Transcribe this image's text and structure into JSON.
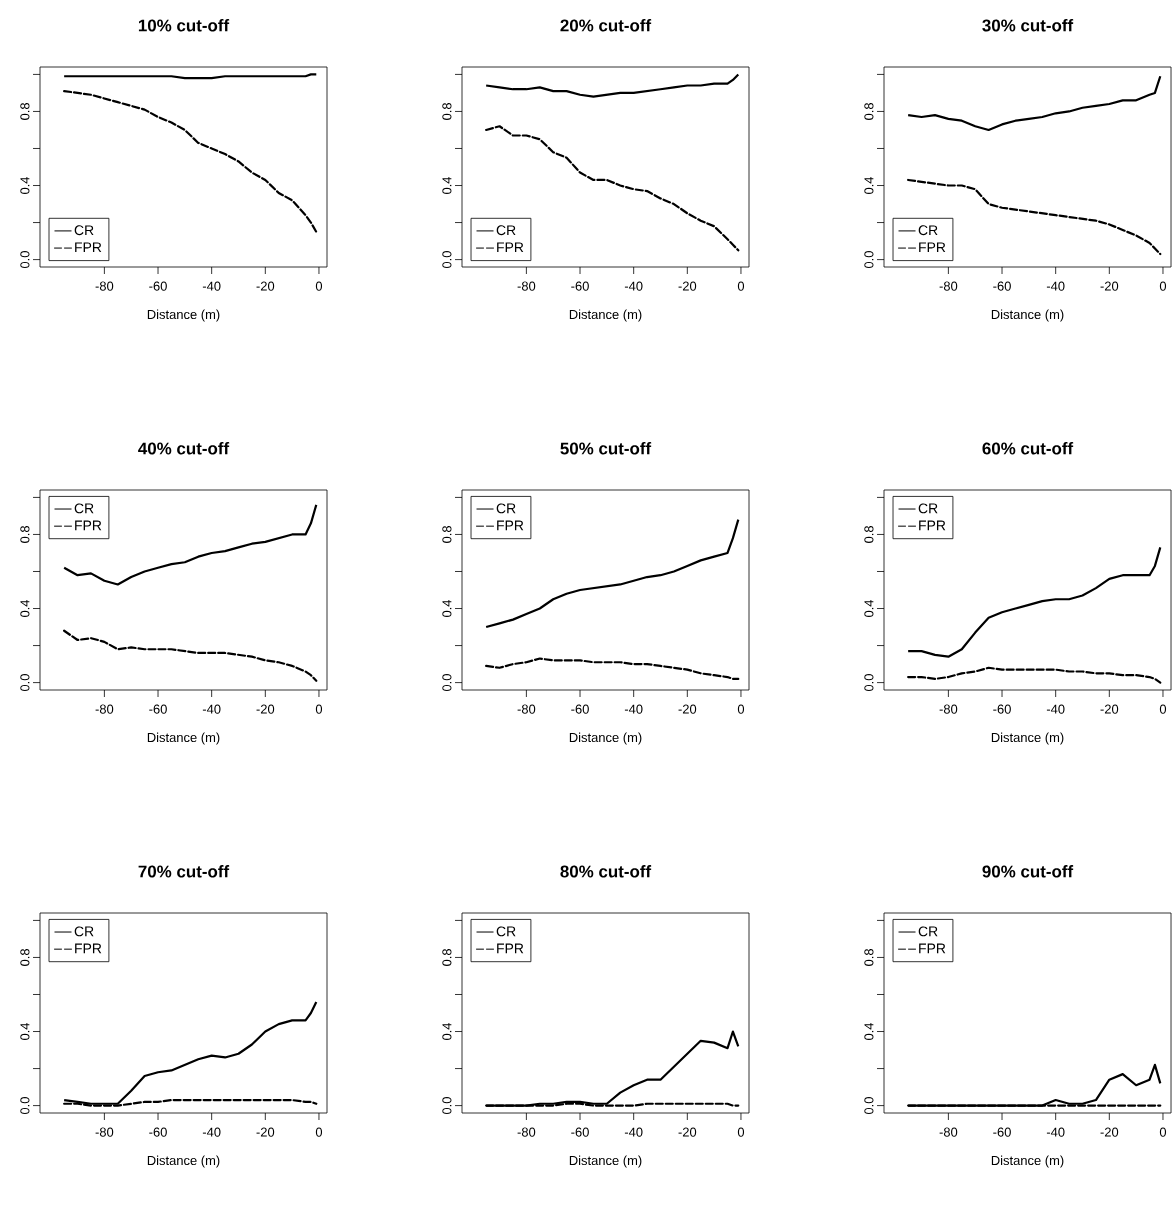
{
  "chart_data": [
    {
      "type": "line",
      "title": "10% cut-off",
      "xlabel": "Distance (m)",
      "legend": "bottom left",
      "xlim": [
        -104,
        3
      ],
      "ylim": [
        -0.04,
        1.04
      ],
      "xticks": [
        {
          "value": -80,
          "label": "-80"
        },
        {
          "value": -60,
          "label": "-60"
        },
        {
          "value": -40,
          "label": "-40"
        },
        {
          "value": -20,
          "label": "-20"
        },
        0
      ],
      "yticks": [
        {
          "value": 0,
          "label": "0.0"
        },
        {
          "value": 0.2,
          "label": null
        },
        {
          "value": 0.4,
          "label": "0.4"
        },
        {
          "value": 0.6,
          "label": null
        },
        {
          "value": 0.8,
          "label": "0.8"
        },
        {
          "value": 1.0,
          "label": null
        }
      ],
      "x": [
        -95,
        -90,
        -85,
        -80,
        -75,
        -70,
        -65,
        -60,
        -55,
        -50,
        -45,
        -40,
        -35,
        -30,
        -25,
        -20,
        -15,
        -10,
        -5,
        -3,
        -1
      ],
      "series": [
        {
          "name": "CR",
          "color": "#000000",
          "line_style": "solid",
          "values": [
            0.99,
            0.99,
            0.99,
            0.99,
            0.99,
            0.99,
            0.99,
            0.99,
            0.99,
            0.98,
            0.98,
            0.98,
            0.99,
            0.99,
            0.99,
            0.99,
            0.99,
            0.99,
            0.99,
            1.0,
            1.0
          ]
        },
        {
          "name": "FPR",
          "color": "#000000",
          "line_style": "dashed",
          "values": [
            0.91,
            0.9,
            0.89,
            0.87,
            0.85,
            0.83,
            0.81,
            0.77,
            0.74,
            0.7,
            0.63,
            0.6,
            0.57,
            0.53,
            0.47,
            0.43,
            0.36,
            0.32,
            0.24,
            0.2,
            0.15
          ]
        }
      ]
    },
    {
      "type": "line",
      "title": "20% cut-off",
      "xlabel": "Distance (m)",
      "legend": "bottom left",
      "xlim": [
        -104,
        3
      ],
      "ylim": [
        -0.04,
        1.04
      ],
      "xticks": [
        {
          "value": -80,
          "label": "-80"
        },
        {
          "value": -60,
          "label": "-60"
        },
        {
          "value": -40,
          "label": "-40"
        },
        {
          "value": -20,
          "label": "-20"
        },
        0
      ],
      "yticks": [
        {
          "value": 0,
          "label": "0.0"
        },
        {
          "value": 0.2,
          "label": null
        },
        {
          "value": 0.4,
          "label": "0.4"
        },
        {
          "value": 0.6,
          "label": null
        },
        {
          "value": 0.8,
          "label": "0.8"
        },
        {
          "value": 1.0,
          "label": null
        }
      ],
      "x": [
        -95,
        -90,
        -85,
        -80,
        -75,
        -70,
        -65,
        -60,
        -55,
        -50,
        -45,
        -40,
        -35,
        -30,
        -25,
        -20,
        -15,
        -10,
        -5,
        -3,
        -1
      ],
      "series": [
        {
          "name": "CR",
          "color": "#000000",
          "line_style": "solid",
          "values": [
            0.94,
            0.93,
            0.92,
            0.92,
            0.93,
            0.91,
            0.91,
            0.89,
            0.88,
            0.89,
            0.9,
            0.9,
            0.91,
            0.92,
            0.93,
            0.94,
            0.94,
            0.95,
            0.95,
            0.97,
            1.0
          ]
        },
        {
          "name": "FPR",
          "color": "#000000",
          "line_style": "dashed",
          "values": [
            0.7,
            0.72,
            0.67,
            0.67,
            0.65,
            0.58,
            0.55,
            0.47,
            0.43,
            0.43,
            0.4,
            0.38,
            0.37,
            0.33,
            0.3,
            0.25,
            0.21,
            0.18,
            0.11,
            0.08,
            0.05
          ]
        }
      ]
    },
    {
      "type": "line",
      "title": "30% cut-off",
      "xlabel": "Distance (m)",
      "legend": "bottom left",
      "xlim": [
        -104,
        3
      ],
      "ylim": [
        -0.04,
        1.04
      ],
      "xticks": [
        {
          "value": -80,
          "label": "-80"
        },
        {
          "value": -60,
          "label": "-60"
        },
        {
          "value": -40,
          "label": "-40"
        },
        {
          "value": -20,
          "label": "-20"
        },
        0
      ],
      "yticks": [
        {
          "value": 0,
          "label": "0.0"
        },
        {
          "value": 0.2,
          "label": null
        },
        {
          "value": 0.4,
          "label": "0.4"
        },
        {
          "value": 0.6,
          "label": null
        },
        {
          "value": 0.8,
          "label": "0.8"
        },
        {
          "value": 1.0,
          "label": null
        }
      ],
      "x": [
        -95,
        -90,
        -85,
        -80,
        -75,
        -70,
        -65,
        -60,
        -55,
        -50,
        -45,
        -40,
        -35,
        -30,
        -25,
        -20,
        -15,
        -10,
        -5,
        -3,
        -1
      ],
      "series": [
        {
          "name": "CR",
          "color": "#000000",
          "line_style": "solid",
          "values": [
            0.78,
            0.77,
            0.78,
            0.76,
            0.75,
            0.72,
            0.7,
            0.73,
            0.75,
            0.76,
            0.77,
            0.79,
            0.8,
            0.82,
            0.83,
            0.84,
            0.86,
            0.86,
            0.89,
            0.9,
            0.99
          ]
        },
        {
          "name": "FPR",
          "color": "#000000",
          "line_style": "dashed",
          "values": [
            0.43,
            0.42,
            0.41,
            0.4,
            0.4,
            0.38,
            0.3,
            0.28,
            0.27,
            0.26,
            0.25,
            0.24,
            0.23,
            0.22,
            0.21,
            0.19,
            0.16,
            0.13,
            0.09,
            0.06,
            0.03
          ]
        }
      ]
    },
    {
      "type": "line",
      "title": "40% cut-off",
      "xlabel": "Distance (m)",
      "legend": "top left",
      "xlim": [
        -104,
        3
      ],
      "ylim": [
        -0.04,
        1.04
      ],
      "xticks": [
        {
          "value": -80,
          "label": "-80"
        },
        {
          "value": -60,
          "label": "-60"
        },
        {
          "value": -40,
          "label": "-40"
        },
        {
          "value": -20,
          "label": "-20"
        },
        0
      ],
      "yticks": [
        {
          "value": 0,
          "label": "0.0"
        },
        {
          "value": 0.2,
          "label": null
        },
        {
          "value": 0.4,
          "label": "0.4"
        },
        {
          "value": 0.6,
          "label": null
        },
        {
          "value": 0.8,
          "label": "0.8"
        },
        {
          "value": 1.0,
          "label": null
        }
      ],
      "x": [
        -95,
        -90,
        -85,
        -80,
        -75,
        -70,
        -65,
        -60,
        -55,
        -50,
        -45,
        -40,
        -35,
        -30,
        -25,
        -20,
        -15,
        -10,
        -5,
        -3,
        -1
      ],
      "series": [
        {
          "name": "CR",
          "color": "#000000",
          "line_style": "solid",
          "values": [
            0.62,
            0.58,
            0.59,
            0.55,
            0.53,
            0.57,
            0.6,
            0.62,
            0.64,
            0.65,
            0.68,
            0.7,
            0.71,
            0.73,
            0.75,
            0.76,
            0.78,
            0.8,
            0.8,
            0.86,
            0.96
          ]
        },
        {
          "name": "FPR",
          "color": "#000000",
          "line_style": "dashed",
          "values": [
            0.28,
            0.23,
            0.24,
            0.22,
            0.18,
            0.19,
            0.18,
            0.18,
            0.18,
            0.17,
            0.16,
            0.16,
            0.16,
            0.15,
            0.14,
            0.12,
            0.11,
            0.09,
            0.06,
            0.04,
            0.01
          ]
        }
      ]
    },
    {
      "type": "line",
      "title": "50% cut-off",
      "xlabel": "Distance (m)",
      "legend": "top left",
      "xlim": [
        -104,
        3
      ],
      "ylim": [
        -0.04,
        1.04
      ],
      "xticks": [
        {
          "value": -80,
          "label": "-80"
        },
        {
          "value": -60,
          "label": "-60"
        },
        {
          "value": -40,
          "label": "-40"
        },
        {
          "value": -20,
          "label": "-20"
        },
        0
      ],
      "yticks": [
        {
          "value": 0,
          "label": "0.0"
        },
        {
          "value": 0.2,
          "label": null
        },
        {
          "value": 0.4,
          "label": "0.4"
        },
        {
          "value": 0.6,
          "label": null
        },
        {
          "value": 0.8,
          "label": "0.8"
        },
        {
          "value": 1.0,
          "label": null
        }
      ],
      "x": [
        -95,
        -90,
        -85,
        -80,
        -75,
        -70,
        -65,
        -60,
        -55,
        -50,
        -45,
        -40,
        -35,
        -30,
        -25,
        -20,
        -15,
        -10,
        -5,
        -3,
        -1
      ],
      "series": [
        {
          "name": "CR",
          "color": "#000000",
          "line_style": "solid",
          "values": [
            0.3,
            0.32,
            0.34,
            0.37,
            0.4,
            0.45,
            0.48,
            0.5,
            0.51,
            0.52,
            0.53,
            0.55,
            0.57,
            0.58,
            0.6,
            0.63,
            0.66,
            0.68,
            0.7,
            0.78,
            0.88
          ]
        },
        {
          "name": "FPR",
          "color": "#000000",
          "line_style": "dashed",
          "values": [
            0.09,
            0.08,
            0.1,
            0.11,
            0.13,
            0.12,
            0.12,
            0.12,
            0.11,
            0.11,
            0.11,
            0.1,
            0.1,
            0.09,
            0.08,
            0.07,
            0.05,
            0.04,
            0.03,
            0.02,
            0.02
          ]
        }
      ]
    },
    {
      "type": "line",
      "title": "60% cut-off",
      "xlabel": "Distance (m)",
      "legend": "top left",
      "xlim": [
        -104,
        3
      ],
      "ylim": [
        -0.04,
        1.04
      ],
      "xticks": [
        {
          "value": -80,
          "label": "-80"
        },
        {
          "value": -60,
          "label": "-60"
        },
        {
          "value": -40,
          "label": "-40"
        },
        {
          "value": -20,
          "label": "-20"
        },
        0
      ],
      "yticks": [
        {
          "value": 0,
          "label": "0.0"
        },
        {
          "value": 0.2,
          "label": null
        },
        {
          "value": 0.4,
          "label": "0.4"
        },
        {
          "value": 0.6,
          "label": null
        },
        {
          "value": 0.8,
          "label": "0.8"
        },
        {
          "value": 1.0,
          "label": null
        }
      ],
      "x": [
        -95,
        -90,
        -85,
        -80,
        -75,
        -70,
        -65,
        -60,
        -55,
        -50,
        -45,
        -40,
        -35,
        -30,
        -25,
        -20,
        -15,
        -10,
        -5,
        -3,
        -1
      ],
      "series": [
        {
          "name": "CR",
          "color": "#000000",
          "line_style": "solid",
          "values": [
            0.17,
            0.17,
            0.15,
            0.14,
            0.18,
            0.27,
            0.35,
            0.38,
            0.4,
            0.42,
            0.44,
            0.45,
            0.45,
            0.47,
            0.51,
            0.56,
            0.58,
            0.58,
            0.58,
            0.63,
            0.73
          ]
        },
        {
          "name": "FPR",
          "color": "#000000",
          "line_style": "dashed",
          "values": [
            0.03,
            0.03,
            0.02,
            0.03,
            0.05,
            0.06,
            0.08,
            0.07,
            0.07,
            0.07,
            0.07,
            0.07,
            0.06,
            0.06,
            0.05,
            0.05,
            0.04,
            0.04,
            0.03,
            0.02,
            0.0
          ]
        }
      ]
    },
    {
      "type": "line",
      "title": "70% cut-off",
      "xlabel": "Distance (m)",
      "legend": "top left",
      "xlim": [
        -104,
        3
      ],
      "ylim": [
        -0.04,
        1.04
      ],
      "xticks": [
        {
          "value": -80,
          "label": "-80"
        },
        {
          "value": -60,
          "label": "-60"
        },
        {
          "value": -40,
          "label": "-40"
        },
        {
          "value": -20,
          "label": "-20"
        },
        0
      ],
      "yticks": [
        {
          "value": 0,
          "label": "0.0"
        },
        {
          "value": 0.2,
          "label": null
        },
        {
          "value": 0.4,
          "label": "0.4"
        },
        {
          "value": 0.6,
          "label": null
        },
        {
          "value": 0.8,
          "label": "0.8"
        },
        {
          "value": 1.0,
          "label": null
        }
      ],
      "x": [
        -95,
        -90,
        -85,
        -80,
        -75,
        -70,
        -65,
        -60,
        -55,
        -50,
        -45,
        -40,
        -35,
        -30,
        -25,
        -20,
        -15,
        -10,
        -5,
        -3,
        -1
      ],
      "series": [
        {
          "name": "CR",
          "color": "#000000",
          "line_style": "solid",
          "values": [
            0.03,
            0.02,
            0.01,
            0.01,
            0.01,
            0.08,
            0.16,
            0.18,
            0.19,
            0.22,
            0.25,
            0.27,
            0.26,
            0.28,
            0.33,
            0.4,
            0.44,
            0.46,
            0.46,
            0.5,
            0.56
          ]
        },
        {
          "name": "FPR",
          "color": "#000000",
          "line_style": "dashed",
          "values": [
            0.01,
            0.01,
            0.0,
            0.0,
            0.0,
            0.01,
            0.02,
            0.02,
            0.03,
            0.03,
            0.03,
            0.03,
            0.03,
            0.03,
            0.03,
            0.03,
            0.03,
            0.03,
            0.02,
            0.02,
            0.01
          ]
        }
      ]
    },
    {
      "type": "line",
      "title": "80% cut-off",
      "xlabel": "Distance (m)",
      "legend": "top left",
      "xlim": [
        -104,
        3
      ],
      "ylim": [
        -0.04,
        1.04
      ],
      "xticks": [
        {
          "value": -80,
          "label": "-80"
        },
        {
          "value": -60,
          "label": "-60"
        },
        {
          "value": -40,
          "label": "-40"
        },
        {
          "value": -20,
          "label": "-20"
        },
        0
      ],
      "yticks": [
        {
          "value": 0,
          "label": "0.0"
        },
        {
          "value": 0.2,
          "label": null
        },
        {
          "value": 0.4,
          "label": "0.4"
        },
        {
          "value": 0.6,
          "label": null
        },
        {
          "value": 0.8,
          "label": "0.8"
        },
        {
          "value": 1.0,
          "label": null
        }
      ],
      "x": [
        -95,
        -90,
        -85,
        -80,
        -75,
        -70,
        -65,
        -60,
        -55,
        -50,
        -45,
        -40,
        -35,
        -30,
        -25,
        -20,
        -15,
        -10,
        -5,
        -3,
        -1
      ],
      "series": [
        {
          "name": "CR",
          "color": "#000000",
          "line_style": "solid",
          "values": [
            0.0,
            0.0,
            0.0,
            0.0,
            0.01,
            0.01,
            0.02,
            0.02,
            0.01,
            0.01,
            0.07,
            0.11,
            0.14,
            0.14,
            0.21,
            0.28,
            0.35,
            0.34,
            0.31,
            0.4,
            0.32
          ]
        },
        {
          "name": "FPR",
          "color": "#000000",
          "line_style": "dashed",
          "values": [
            0.0,
            0.0,
            0.0,
            0.0,
            0.0,
            0.0,
            0.01,
            0.01,
            0.0,
            0.0,
            0.0,
            0.0,
            0.01,
            0.01,
            0.01,
            0.01,
            0.01,
            0.01,
            0.01,
            0.0,
            0.0
          ]
        }
      ]
    },
    {
      "type": "line",
      "title": "90% cut-off",
      "xlabel": "Distance (m)",
      "legend": "top left",
      "xlim": [
        -104,
        3
      ],
      "ylim": [
        -0.04,
        1.04
      ],
      "xticks": [
        {
          "value": -80,
          "label": "-80"
        },
        {
          "value": -60,
          "label": "-60"
        },
        {
          "value": -40,
          "label": "-40"
        },
        {
          "value": -20,
          "label": "-20"
        },
        0
      ],
      "yticks": [
        {
          "value": 0,
          "label": "0.0"
        },
        {
          "value": 0.2,
          "label": null
        },
        {
          "value": 0.4,
          "label": "0.4"
        },
        {
          "value": 0.6,
          "label": null
        },
        {
          "value": 0.8,
          "label": "0.8"
        },
        {
          "value": 1.0,
          "label": null
        }
      ],
      "x": [
        -95,
        -90,
        -85,
        -80,
        -75,
        -70,
        -65,
        -60,
        -55,
        -50,
        -45,
        -40,
        -35,
        -30,
        -25,
        -20,
        -15,
        -10,
        -5,
        -3,
        -1
      ],
      "series": [
        {
          "name": "CR",
          "color": "#000000",
          "line_style": "solid",
          "values": [
            0.0,
            0.0,
            0.0,
            0.0,
            0.0,
            0.0,
            0.0,
            0.0,
            0.0,
            0.0,
            0.0,
            0.03,
            0.01,
            0.01,
            0.03,
            0.14,
            0.17,
            0.11,
            0.14,
            0.22,
            0.12
          ]
        },
        {
          "name": "FPR",
          "color": "#000000",
          "line_style": "dashed",
          "values": [
            0.0,
            0.0,
            0.0,
            0.0,
            0.0,
            0.0,
            0.0,
            0.0,
            0.0,
            0.0,
            0.0,
            0.0,
            0.0,
            0.0,
            0.0,
            0.0,
            0.0,
            0.0,
            0.0,
            0.0,
            0.0
          ]
        }
      ]
    }
  ]
}
